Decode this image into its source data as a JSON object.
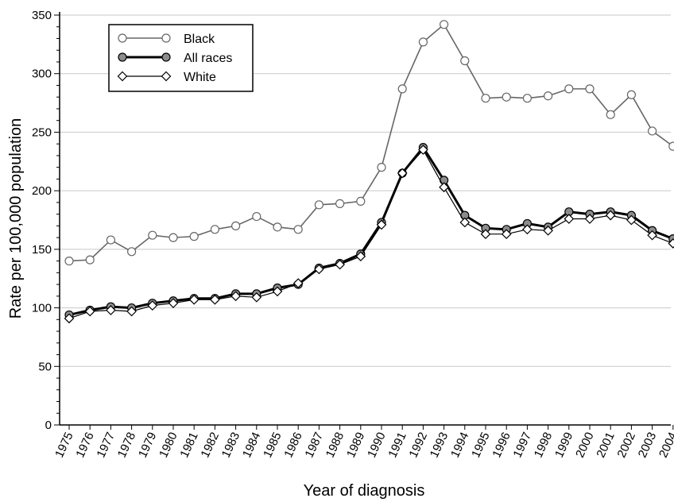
{
  "chart_data": {
    "type": "line",
    "xlabel": "Year of diagnosis",
    "ylabel": "Rate per 100,000 population",
    "ylim": [
      0,
      350
    ],
    "yticks": [
      0,
      50,
      100,
      150,
      200,
      250,
      300,
      350
    ],
    "grid": "horizontal",
    "legend_position": "top-left",
    "categories": [
      "1975",
      "1976",
      "1977",
      "1978",
      "1979",
      "1980",
      "1981",
      "1982",
      "1983",
      "1984",
      "1985",
      "1986",
      "1987",
      "1988",
      "1989",
      "1990",
      "1991",
      "1992",
      "1993",
      "1994",
      "1995",
      "1996",
      "1997",
      "1998",
      "1999",
      "2000",
      "2001",
      "2002",
      "2003",
      "2004"
    ],
    "series": [
      {
        "name": "Black",
        "marker": "open-circle",
        "color": "#666666",
        "values": [
          140,
          141,
          158,
          148,
          162,
          160,
          161,
          167,
          170,
          178,
          169,
          167,
          188,
          189,
          191,
          220,
          287,
          327,
          342,
          311,
          279,
          280,
          279,
          281,
          287,
          287,
          265,
          282,
          251,
          238
        ]
      },
      {
        "name": "All races",
        "marker": "filled-circle",
        "color": "#000000",
        "marker_fill": "#8c8c8c",
        "values": [
          94,
          98,
          101,
          100,
          104,
          106,
          108,
          108,
          112,
          112,
          117,
          120,
          134,
          138,
          146,
          173,
          215,
          237,
          209,
          179,
          168,
          167,
          172,
          169,
          182,
          180,
          182,
          179,
          166,
          159
        ]
      },
      {
        "name": "White",
        "marker": "open-diamond",
        "color": "#000000",
        "values": [
          91,
          97,
          98,
          97,
          102,
          104,
          107,
          107,
          110,
          109,
          114,
          121,
          133,
          137,
          144,
          171,
          215,
          235,
          203,
          173,
          163,
          163,
          167,
          166,
          176,
          176,
          179,
          175,
          162,
          155
        ]
      }
    ]
  }
}
